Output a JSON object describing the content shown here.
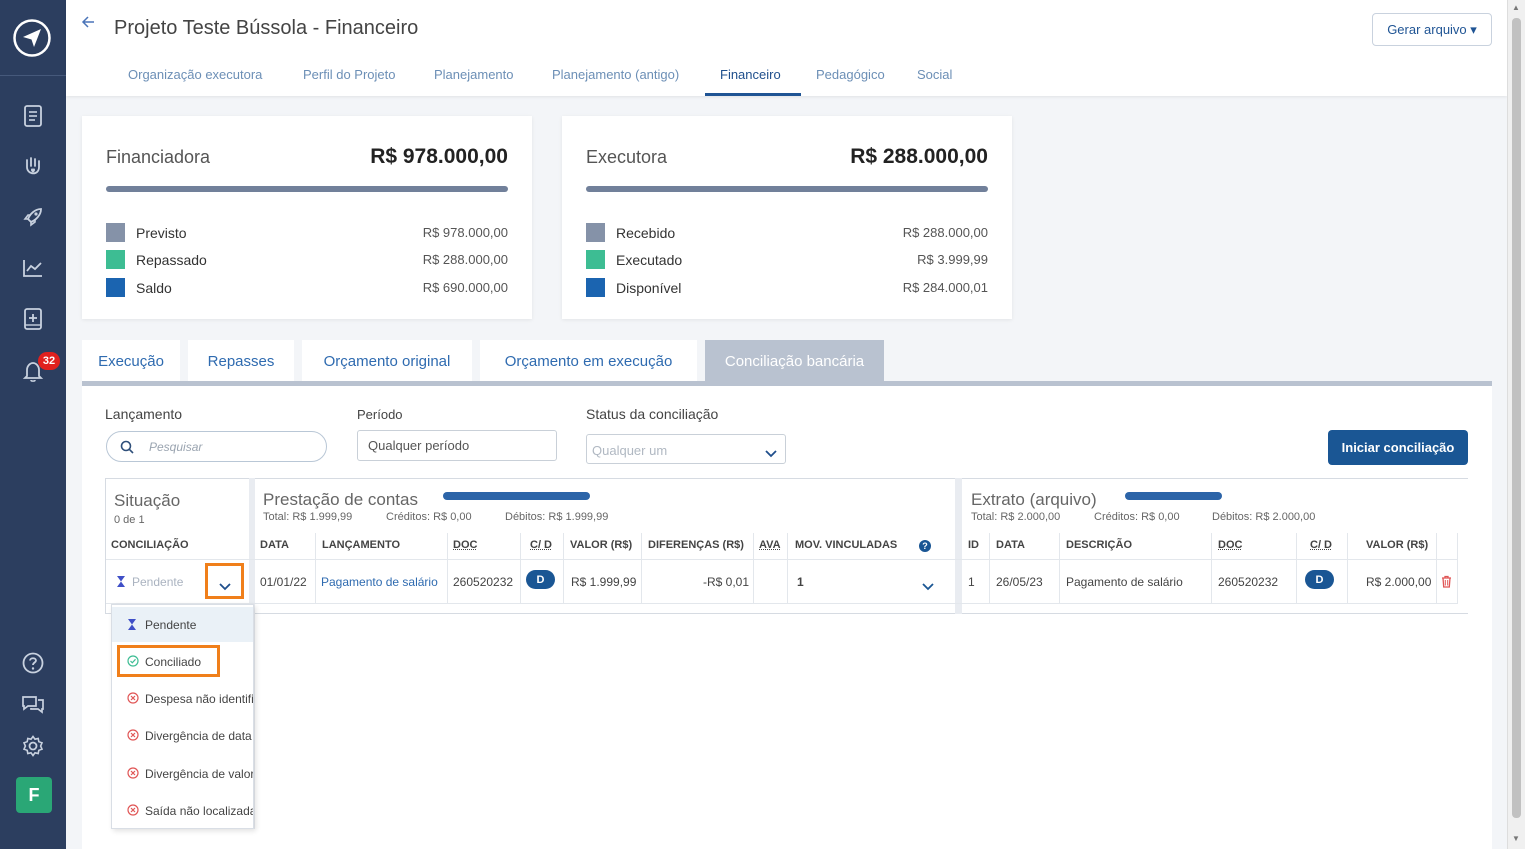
{
  "app": {
    "title": "Projeto Teste Bússola - Financeiro",
    "generate_button": "Gerar arquivo ▾",
    "notifications_count": "32",
    "avatar_letter": "F",
    "nav_tabs": [
      "Organização executora",
      "Perfil do Projeto",
      "Planejamento",
      "Planejamento (antigo)",
      "Financeiro",
      "Pedagógico",
      "Social"
    ],
    "active_nav_tab": "Financeiro"
  },
  "cards": {
    "financiadora": {
      "title": "Financiadora",
      "total": "R$ 978.000,00",
      "rows": [
        {
          "label": "Previsto",
          "value": "R$ 978.000,00",
          "color": "#8592a8"
        },
        {
          "label": "Repassado",
          "value": "R$ 288.000,00",
          "color": "#3dbd93"
        },
        {
          "label": "Saldo",
          "value": "R$ 690.000,00",
          "color": "#1b64b0"
        }
      ]
    },
    "executora": {
      "title": "Executora",
      "total": "R$ 288.000,00",
      "rows": [
        {
          "label": "Recebido",
          "value": "R$ 288.000,00",
          "color": "#8592a8"
        },
        {
          "label": "Executado",
          "value": "R$ 3.999,99",
          "color": "#3dbd93"
        },
        {
          "label": "Disponível",
          "value": "R$ 284.000,01",
          "color": "#1b64b0"
        }
      ]
    }
  },
  "subtabs": [
    "Execução",
    "Repasses",
    "Orçamento original",
    "Orçamento em execução",
    "Conciliação bancária"
  ],
  "active_subtab": "Conciliação bancária",
  "filters": {
    "lancamento_label": "Lançamento",
    "search_placeholder": "Pesquisar",
    "periodo_label": "Período",
    "periodo_value": "Qualquer período",
    "status_label": "Status da conciliação",
    "status_placeholder": "Qualquer um",
    "start_button": "Iniciar conciliação"
  },
  "situacao": {
    "title": "Situação",
    "count": "0 de 1",
    "column": "CONCILIAÇÃO",
    "current_value": "Pendente"
  },
  "prestacao": {
    "title": "Prestação de contas",
    "total": "Total: R$ 1.999,99",
    "creditos": "Créditos: R$ 0,00",
    "debitos": "Débitos: R$ 1.999,99",
    "columns": [
      "DATA",
      "LANÇAMENTO",
      "DOC",
      "C/ D",
      "VALOR (R$)",
      "DIFERENÇAS (R$)",
      "AVA",
      "MOV. VINCULADAS"
    ],
    "row": {
      "data": "01/01/22",
      "lancamento": "Pagamento de salário",
      "doc": "260520232",
      "cd": "D",
      "valor": "R$ 1.999,99",
      "diferenca": "-R$ 0,01",
      "ava": "",
      "mov": "1"
    }
  },
  "extrato": {
    "title": "Extrato (arquivo)",
    "total": "Total: R$ 2.000,00",
    "creditos": "Créditos: R$ 0,00",
    "debitos": "Débitos: R$ 2.000,00",
    "columns": [
      "ID",
      "DATA",
      "DESCRIÇÃO",
      "DOC",
      "C/ D",
      "VALOR (R$)"
    ],
    "row": {
      "id": "1",
      "data": "26/05/23",
      "descricao": "Pagamento de salário",
      "doc": "260520232",
      "cd": "D",
      "valor": "R$ 2.000,00"
    }
  },
  "dropdown_options": [
    {
      "label": "Pendente",
      "icon": "hourglass-icon",
      "color": "#3f4fc7"
    },
    {
      "label": "Conciliado",
      "icon": "check-circle-icon",
      "color": "#3dbd93"
    },
    {
      "label": "Despesa não identificada",
      "icon": "x-circle-icon",
      "color": "#e05555"
    },
    {
      "label": "Divergência de data",
      "icon": "x-circle-icon",
      "color": "#e05555"
    },
    {
      "label": "Divergência de valor",
      "icon": "x-circle-icon",
      "color": "#e05555"
    },
    {
      "label": "Saída não localizada",
      "icon": "x-circle-icon",
      "color": "#e05555"
    }
  ],
  "colors": {
    "accent": "#1a5694",
    "highlight": "#f07f1a"
  }
}
